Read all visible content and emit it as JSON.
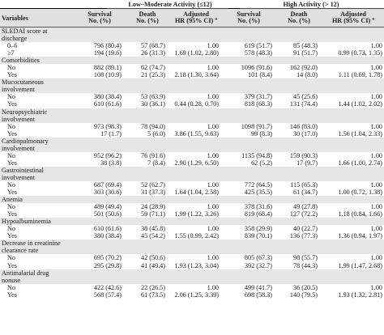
{
  "groups": [
    {
      "label": "Low–Moderate Activity (≤12)"
    },
    {
      "label": "High Activity (> 12)"
    }
  ],
  "header": {
    "variables": "Variables",
    "survival": [
      "Survival",
      "No. (%)"
    ],
    "death": [
      "Death",
      "No. (%)"
    ],
    "adjusted": [
      "Adjusted",
      "HR (95% CI)"
    ],
    "footnote_mark": "a"
  },
  "rows": [
    {
      "label": "SLEDAI score at",
      "sub": false,
      "alt": true,
      "cells": [
        "",
        "",
        "",
        "",
        "",
        ""
      ]
    },
    {
      "label": "discharge",
      "sub": false,
      "alt": true,
      "cells": [
        "",
        "",
        "",
        "",
        "",
        ""
      ]
    },
    {
      "label": "0–6",
      "sub": true,
      "alt": false,
      "cells": [
        "796 (80.4)",
        "57 (68.7)",
        "1.00",
        "619 (51.7)",
        "85 (48.3)",
        "1.00"
      ]
    },
    {
      "label": "≥7",
      "sub": true,
      "alt": false,
      "cells": [
        "194 (19.6)",
        "26 (31.3)",
        "1.69 (1.02, 2.80)",
        "578 (48.3)",
        "91 (51.7)",
        "0.99 (0.73, 1.35)"
      ]
    },
    {
      "label": "Comorbidities",
      "sub": false,
      "alt": true,
      "cells": [
        "",
        "",
        "",
        "",
        "",
        ""
      ]
    },
    {
      "label": "No",
      "sub": true,
      "alt": false,
      "cells": [
        "882 (89.1)",
        "62 (74.7)",
        "1.00",
        "1096 (91.6)",
        "162 (92.0)",
        "1.00"
      ]
    },
    {
      "label": "Yes",
      "sub": true,
      "alt": false,
      "cells": [
        "108 (10.9)",
        "21 (25.3)",
        "2.18 (1.30, 3.64)",
        "101 (8.4)",
        "14 (8.0)",
        "1.11 (0.69, 1.78)"
      ]
    },
    {
      "label": "Mucocutaneous",
      "sub": false,
      "alt": true,
      "cells": [
        "",
        "",
        "",
        "",
        "",
        ""
      ]
    },
    {
      "label": "involvement",
      "sub": false,
      "alt": true,
      "cells": [
        "",
        "",
        "",
        "",
        "",
        ""
      ]
    },
    {
      "label": "No",
      "sub": true,
      "alt": false,
      "cells": [
        "380 (38.4)",
        "53 (63.9)",
        "1.00",
        "379 (31.7)",
        "45 (25.6)",
        "1.00"
      ]
    },
    {
      "label": "Yes",
      "sub": true,
      "alt": false,
      "cells": [
        "610 (61.6)",
        "30 (36.1)",
        "0.44 (0.28, 0.70)",
        "818 (68.3)",
        "131 (74.4)",
        "1.44 (1.02, 2.02)"
      ]
    },
    {
      "label": "Neuropsychiatric",
      "sub": false,
      "alt": true,
      "cells": [
        "",
        "",
        "",
        "",
        "",
        ""
      ]
    },
    {
      "label": "involvement",
      "sub": false,
      "alt": true,
      "cells": [
        "",
        "",
        "",
        "",
        "",
        ""
      ]
    },
    {
      "label": "No",
      "sub": true,
      "alt": false,
      "cells": [
        "973 (98.3)",
        "78 (94.0)",
        "1.00",
        "1098 (91.7)",
        "146 (83.0)",
        "1.00"
      ]
    },
    {
      "label": "Yes",
      "sub": true,
      "alt": false,
      "cells": [
        "17 (1.7)",
        "5 (6.0)",
        "3.86 (1.55, 9.63)",
        "99 (8.3)",
        "30 (17.0)",
        "1.56 (1.04, 2.33)"
      ]
    },
    {
      "label": "Cardiopulmonary",
      "sub": false,
      "alt": true,
      "cells": [
        "",
        "",
        "",
        "",
        "",
        ""
      ]
    },
    {
      "label": "involvement",
      "sub": false,
      "alt": true,
      "cells": [
        "",
        "",
        "",
        "",
        "",
        ""
      ]
    },
    {
      "label": "No",
      "sub": true,
      "alt": false,
      "cells": [
        "952 (96.2)",
        "76 (91.6)",
        "1.00",
        "1135 (94.8)",
        "159 (90.3)",
        "1.00"
      ]
    },
    {
      "label": "Yes",
      "sub": true,
      "alt": false,
      "cells": [
        "38 (3.8)",
        "7 (8.4)",
        "2.90 (1.29, 6.50)",
        "62 (5.2)",
        "17 (9.7)",
        "1.66 (1.00, 2.74)"
      ]
    },
    {
      "label": "Gastrointestinal",
      "sub": false,
      "alt": true,
      "cells": [
        "",
        "",
        "",
        "",
        "",
        ""
      ]
    },
    {
      "label": "involvement",
      "sub": false,
      "alt": true,
      "cells": [
        "",
        "",
        "",
        "",
        "",
        ""
      ]
    },
    {
      "label": "No",
      "sub": true,
      "alt": false,
      "cells": [
        "687 (69.4)",
        "52 (62.7)",
        "1.00",
        "772 (64.5)",
        "115 (65.3)",
        "1.00"
      ]
    },
    {
      "label": "Yes",
      "sub": true,
      "alt": false,
      "cells": [
        "303 (30.6)",
        "31 (37.3)",
        "1.64 (1.04, 2.58)",
        "425 (35.5)",
        "61 (34.7)",
        "1.00 (0.72, 1.38)"
      ]
    },
    {
      "label": "Anemia",
      "sub": false,
      "alt": true,
      "cells": [
        "",
        "",
        "",
        "",
        "",
        ""
      ]
    },
    {
      "label": "No",
      "sub": true,
      "alt": false,
      "cells": [
        "489 (49.4)",
        "24 (28.9)",
        "1.00",
        "378 (31.6)",
        "49 (27.8)",
        "1.00"
      ]
    },
    {
      "label": "Yes",
      "sub": true,
      "alt": false,
      "cells": [
        "501 (50.6)",
        "59 (71.1)",
        "1.99 (1.22, 3.26)",
        "819 (68.4)",
        "127 (72.2)",
        "1.18 (0.84, 1.66)"
      ]
    },
    {
      "label": "Hypoalbuminemia",
      "sub": false,
      "alt": true,
      "cells": [
        "",
        "",
        "",
        "",
        "",
        ""
      ]
    },
    {
      "label": "No",
      "sub": true,
      "alt": false,
      "cells": [
        "610 (61.6)",
        "38 (45.8)",
        "1.00",
        "358 (29.9)",
        "40 (22.7)",
        "1.00"
      ]
    },
    {
      "label": "Yes",
      "sub": true,
      "alt": false,
      "cells": [
        "380 (38.4)",
        "45 (54.2)",
        "1.55 (0.99, 2.42)",
        "839 (70.1)",
        "136 (77.3)",
        "1.36 (0.94, 1.97)"
      ]
    },
    {
      "label": "Decrease in creatinine",
      "sub": false,
      "alt": true,
      "cells": [
        "",
        "",
        "",
        "",
        "",
        ""
      ]
    },
    {
      "label": "clearance rate",
      "sub": false,
      "alt": true,
      "cells": [
        "",
        "",
        "",
        "",
        "",
        ""
      ]
    },
    {
      "label": "No",
      "sub": true,
      "alt": false,
      "cells": [
        "695 (70.2)",
        "42 (50.6)",
        "1.00",
        "805 (67.3)",
        "98 (55.7)",
        "1.00"
      ]
    },
    {
      "label": "Yes",
      "sub": true,
      "alt": false,
      "cells": [
        "295 (29.8)",
        "41 (49.4)",
        "1.93 (1.23, 3.04)",
        "392 (32.7)",
        "78 (44.3)",
        "1.99 (1.47, 2.68)"
      ]
    },
    {
      "label": "Antimalarial drug",
      "sub": false,
      "alt": true,
      "cells": [
        "",
        "",
        "",
        "",
        "",
        ""
      ]
    },
    {
      "label": "nonuse",
      "sub": false,
      "alt": true,
      "cells": [
        "",
        "",
        "",
        "",
        "",
        ""
      ]
    },
    {
      "label": "No",
      "sub": true,
      "alt": false,
      "cells": [
        "422 (42.6)",
        "22 (26.5)",
        "1.00",
        "499 (41.7)",
        "36 (20.5)",
        "1.00"
      ]
    },
    {
      "label": "Yes",
      "sub": true,
      "alt": false,
      "cells": [
        "568 (57.4)",
        "61 (73.5)",
        "2.06 (1.25, 3.39)",
        "698 (58.3)",
        "140 (79.5)",
        "1.93 (1.32, 2.81)"
      ]
    }
  ]
}
